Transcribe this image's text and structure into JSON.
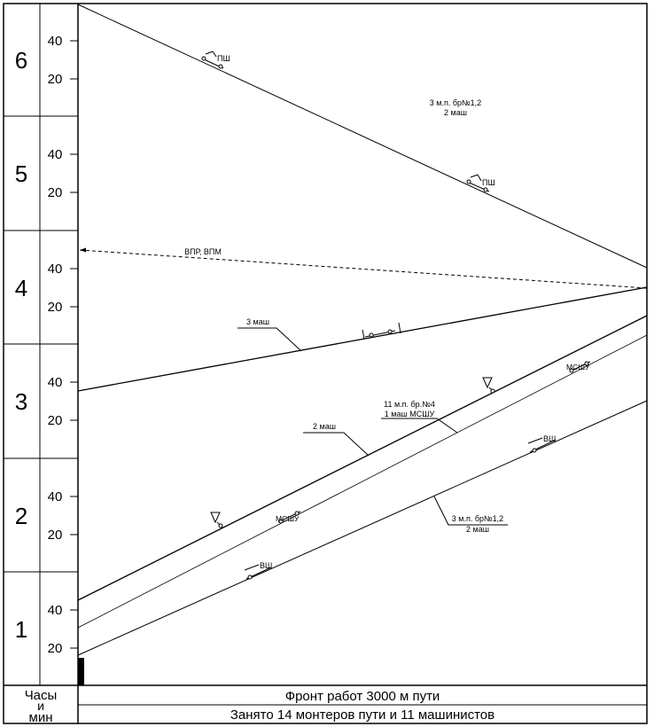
{
  "hours": [
    {
      "label": "6",
      "minute_marks": [
        "40",
        "20"
      ]
    },
    {
      "label": "5",
      "minute_marks": [
        "40",
        "20"
      ]
    },
    {
      "label": "4",
      "minute_marks": [
        "40",
        "20"
      ]
    },
    {
      "label": "3",
      "minute_marks": [
        "40",
        "20"
      ]
    },
    {
      "label": "2",
      "minute_marks": [
        "40",
        "20"
      ]
    },
    {
      "label": "1",
      "minute_marks": [
        "40",
        "20"
      ]
    }
  ],
  "footer": {
    "axis_label_line1": "Часы",
    "axis_label_line2": "и",
    "axis_label_line3": "мин",
    "front_text": "Фронт работ 3000 м пути",
    "staff_text": "Занято 14 монтеров пути и 11 машинистов"
  },
  "annotations": {
    "ps_top": "ПШ",
    "ps_mid": "ПШ",
    "brigade_12_top_line1": "3 м.п. бр№1,2",
    "brigade_12_top_line2": "2 маш",
    "vpr_label": "ВПР, ВПМ",
    "mash3_label": "3 маш",
    "mash2_label": "2 маш",
    "brigade4_line1": "11 м.п. бр.№4",
    "brigade4_line2": "1 маш МСШУ",
    "mshu_upper": "МСШУ",
    "mshu_lower": "МСШУ",
    "vsh_upper": "ВШ",
    "vsh_lower": "ВШ",
    "brigade_12_bottom_line1": "3 м.п. бр№1,2",
    "brigade_12_bottom_line2": "2 маш"
  }
}
